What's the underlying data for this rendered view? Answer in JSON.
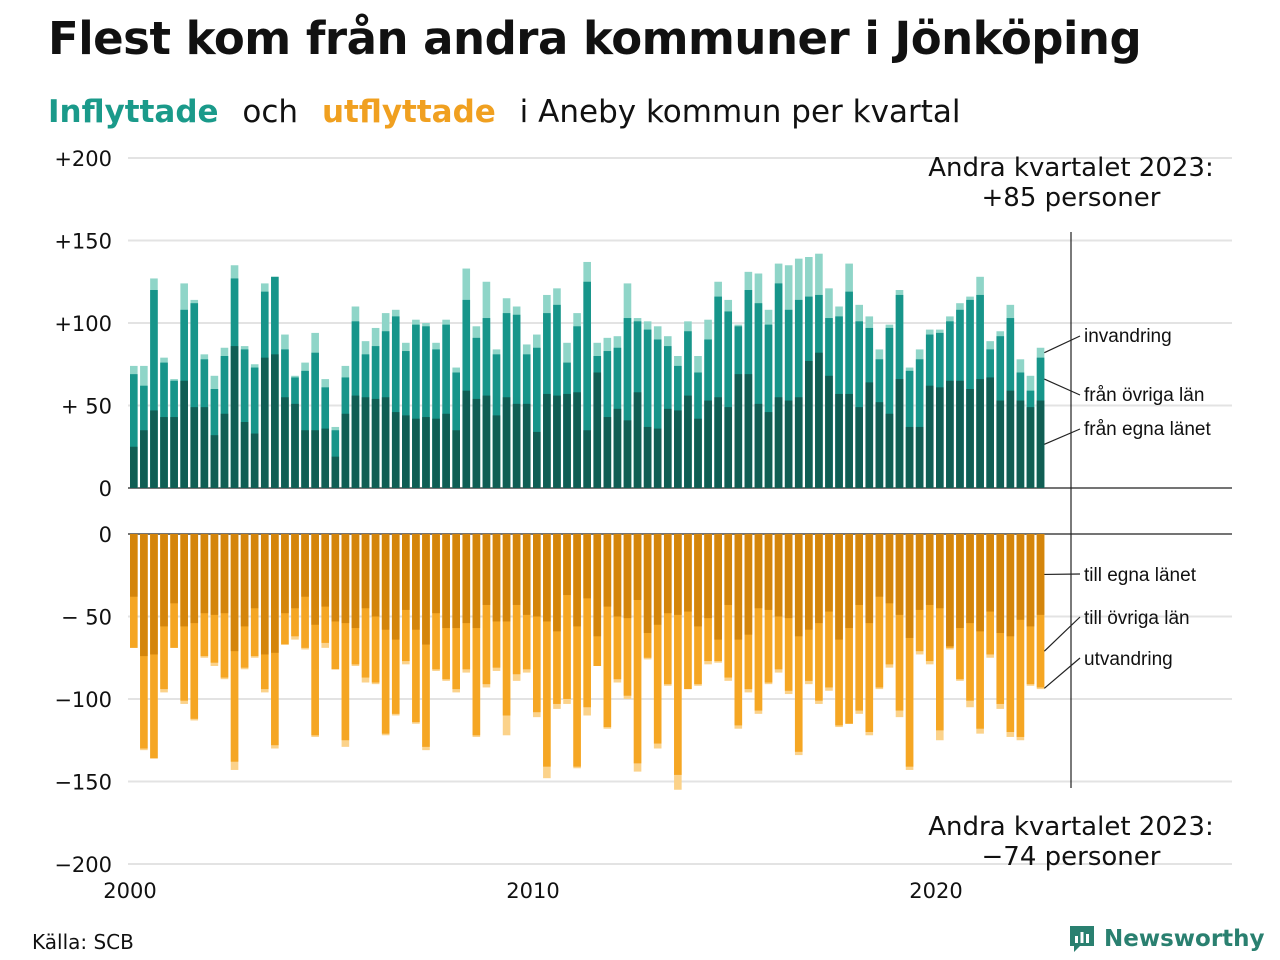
{
  "title": "Flest kom från andra kommuner i Jönköping",
  "subtitle": {
    "part1": "Inflyttade",
    "part2": "och",
    "part3": "utflyttade",
    "part4": "i Aneby kommun per kvartal"
  },
  "source": "Källa: SCB",
  "brand": "Newsworthy",
  "colors": {
    "in_lan": "#105e54",
    "in_ovriga": "#17958a",
    "in_invandring": "#8fd5c8",
    "out_lan": "#d4850b",
    "out_ovriga": "#f5a623",
    "out_utvandring": "#fbd28a",
    "grid": "#e3e3e3"
  },
  "chart_data": {
    "type": "bar",
    "stacked": true,
    "x_axis": {
      "ticks": [
        "2000",
        "2010",
        "2020"
      ]
    },
    "y_axis_top": {
      "ticks": [
        "+200",
        "+150",
        "+100",
        "+ 50",
        "0"
      ],
      "ylim": [
        0,
        200
      ]
    },
    "y_axis_bottom": {
      "ticks": [
        "0",
        "− 50",
        "−100",
        "−150",
        "−200"
      ],
      "ylim": [
        -200,
        0
      ]
    },
    "grid": true,
    "annotation_top": {
      "line1": "Andra kvartalet 2023:",
      "line2": "+85 personer"
    },
    "annotation_bottom": {
      "line1": "Andra kvartalet 2023:",
      "line2": "−74 personer"
    },
    "series_labels": {
      "invandring": "invandring",
      "fran_ovriga": "från övriga län",
      "fran_egna": "från egna länet",
      "till_egna": "till egna länet",
      "till_ovriga": "till övriga län",
      "utvandring": "utvandring"
    },
    "first_period": "2000 Q1",
    "last_period": "2023 Q2",
    "inflow_total": [
      74,
      74,
      127,
      79,
      66,
      124,
      114,
      81,
      68,
      85,
      135,
      86,
      75,
      124,
      128,
      93,
      68,
      76,
      94,
      66,
      37,
      74,
      110,
      89,
      97,
      106,
      108,
      88,
      102,
      100,
      88,
      102,
      73,
      133,
      98,
      125,
      84,
      115,
      110,
      87,
      93,
      117,
      121,
      88,
      106,
      137,
      88,
      91,
      92,
      124,
      103,
      101,
      98,
      92,
      80,
      101,
      80,
      102,
      125,
      114,
      99,
      131,
      130,
      108,
      136,
      135,
      139,
      140,
      142,
      121,
      110,
      136,
      111,
      104,
      84,
      99,
      120,
      73,
      84,
      96,
      96,
      104,
      112,
      116,
      128,
      89,
      95,
      111,
      78,
      68,
      85
    ],
    "inflow_ovriga": [
      69,
      62,
      120,
      76,
      65,
      108,
      112,
      78,
      60,
      80,
      127,
      84,
      73,
      119,
      128,
      84,
      67,
      71,
      82,
      61,
      35,
      67,
      101,
      81,
      86,
      95,
      104,
      83,
      99,
      98,
      84,
      99,
      70,
      114,
      91,
      103,
      81,
      106,
      105,
      81,
      85,
      106,
      111,
      76,
      98,
      125,
      80,
      83,
      85,
      103,
      101,
      96,
      90,
      86,
      74,
      95,
      70,
      90,
      116,
      107,
      98,
      120,
      112,
      99,
      124,
      108,
      114,
      116,
      117,
      103,
      104,
      119,
      101,
      97,
      78,
      97,
      117,
      71,
      78,
      93,
      94,
      101,
      108,
      114,
      117,
      84,
      92,
      103,
      70,
      59,
      79
    ],
    "inflow_lan": [
      25,
      35,
      47,
      43,
      43,
      65,
      49,
      49,
      32,
      45,
      86,
      40,
      33,
      79,
      81,
      55,
      51,
      35,
      35,
      36,
      19,
      45,
      56,
      55,
      54,
      55,
      46,
      44,
      42,
      43,
      42,
      45,
      35,
      59,
      54,
      56,
      44,
      55,
      51,
      51,
      34,
      57,
      56,
      57,
      58,
      35,
      70,
      43,
      48,
      41,
      58,
      37,
      36,
      48,
      47,
      56,
      42,
      53,
      55,
      49,
      69,
      69,
      51,
      46,
      55,
      53,
      55,
      77,
      82,
      68,
      57,
      57,
      49,
      64,
      52,
      45,
      66,
      37,
      37,
      62,
      61,
      65,
      65,
      60,
      66,
      67,
      53,
      59,
      53,
      49,
      53
    ],
    "outflow_total": [
      69,
      131,
      136,
      96,
      69,
      103,
      113,
      75,
      80,
      88,
      143,
      82,
      75,
      96,
      130,
      67,
      64,
      70,
      123,
      69,
      82,
      129,
      80,
      90,
      91,
      122,
      110,
      79,
      115,
      131,
      83,
      89,
      96,
      84,
      123,
      93,
      83,
      122,
      89,
      84,
      111,
      148,
      106,
      103,
      142,
      110,
      80,
      118,
      90,
      100,
      144,
      76,
      130,
      92,
      155,
      94,
      92,
      79,
      78,
      89,
      118,
      96,
      109,
      91,
      84,
      97,
      134,
      91,
      103,
      95,
      117,
      115,
      109,
      122,
      94,
      81,
      111,
      143,
      73,
      79,
      125,
      70,
      89,
      105,
      121,
      75,
      106,
      123,
      125,
      92,
      94
    ],
    "outflow_ovriga": [
      69,
      130,
      136,
      94,
      69,
      101,
      112,
      74,
      78,
      87,
      138,
      81,
      74,
      94,
      128,
      67,
      62,
      69,
      122,
      66,
      82,
      125,
      79,
      87,
      90,
      121,
      109,
      77,
      114,
      129,
      82,
      88,
      94,
      82,
      122,
      91,
      81,
      110,
      85,
      82,
      108,
      141,
      103,
      100,
      141,
      105,
      80,
      117,
      88,
      98,
      139,
      75,
      127,
      91,
      146,
      94,
      91,
      77,
      77,
      87,
      116,
      94,
      107,
      90,
      82,
      95,
      132,
      89,
      101,
      93,
      116,
      115,
      107,
      120,
      93,
      79,
      107,
      141,
      71,
      77,
      119,
      69,
      88,
      101,
      118,
      73,
      103,
      120,
      123,
      91,
      93
    ],
    "outflow_lan": [
      38,
      74,
      73,
      56,
      42,
      56,
      54,
      48,
      49,
      48,
      71,
      56,
      45,
      73,
      72,
      48,
      45,
      38,
      55,
      44,
      53,
      54,
      57,
      45,
      50,
      58,
      64,
      46,
      58,
      67,
      48,
      57,
      57,
      54,
      57,
      43,
      53,
      53,
      43,
      49,
      50,
      53,
      59,
      37,
      56,
      39,
      62,
      44,
      50,
      51,
      40,
      60,
      55,
      48,
      49,
      47,
      56,
      51,
      64,
      43,
      64,
      61,
      45,
      46,
      50,
      51,
      62,
      58,
      54,
      47,
      64,
      57,
      43,
      54,
      38,
      42,
      49,
      63,
      46,
      43,
      45,
      68,
      57,
      54,
      59,
      47,
      60,
      62,
      52,
      56,
      49
    ]
  }
}
